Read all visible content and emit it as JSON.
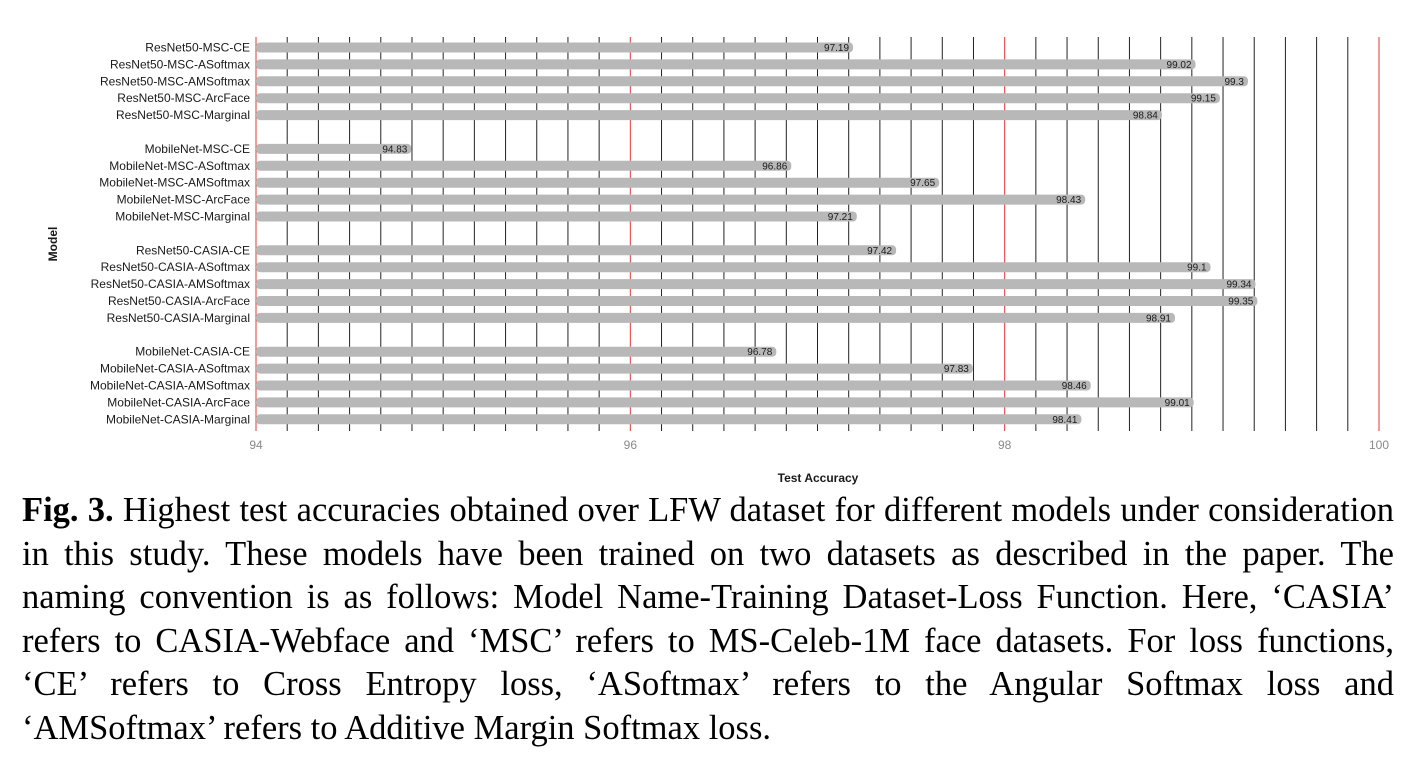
{
  "chart_data": {
    "type": "bar",
    "orientation": "horizontal",
    "xlabel": "Test Accuracy",
    "ylabel": "Model",
    "xlim": [
      94,
      100
    ],
    "xticks": [
      "94",
      "96",
      "98",
      "100"
    ],
    "bar_color": "#b8b8b8",
    "major_grid_color": "#e53935",
    "minor_grid_color": "#222222",
    "groups": [
      {
        "categories": [
          "ResNet50-MSC-CE",
          "ResNet50-MSC-ASoftmax",
          "ResNet50-MSC-AMSoftmax",
          "ResNet50-MSC-ArcFace",
          "ResNet50-MSC-Marginal"
        ],
        "values": [
          97.19,
          99.02,
          99.3,
          99.15,
          98.84
        ],
        "labels": [
          "97.19",
          "99.02",
          "99.3",
          "99.15",
          "98.84"
        ]
      },
      {
        "categories": [
          "MobileNet-MSC-CE",
          "MobileNet-MSC-ASoftmax",
          "MobileNet-MSC-AMSoftmax",
          "MobileNet-MSC-ArcFace",
          "MobileNet-MSC-Marginal"
        ],
        "values": [
          94.83,
          96.86,
          97.65,
          98.43,
          97.21
        ],
        "labels": [
          "94.83",
          "96.86",
          "97.65",
          "98.43",
          "97.21"
        ]
      },
      {
        "categories": [
          "ResNet50-CASIA-CE",
          "ResNet50-CASIA-ASoftmax",
          "ResNet50-CASIA-AMSoftmax",
          "ResNet50-CASIA-ArcFace",
          "ResNet50-CASIA-Marginal"
        ],
        "values": [
          97.42,
          99.1,
          99.34,
          99.35,
          98.91
        ],
        "labels": [
          "97.42",
          "99.1",
          "99.34",
          "99.35",
          "98.91"
        ]
      },
      {
        "categories": [
          "MobileNet-CASIA-CE",
          "MobileNet-CASIA-ASoftmax",
          "MobileNet-CASIA-AMSoftmax",
          "MobileNet-CASIA-ArcFace",
          "MobileNet-CASIA-Marginal"
        ],
        "values": [
          96.78,
          97.83,
          98.46,
          99.01,
          98.41
        ],
        "labels": [
          "96.78",
          "97.83",
          "98.46",
          "99.01",
          "98.41"
        ]
      }
    ]
  },
  "caption": {
    "label": "Fig. 3.",
    "text": "Highest test accuracies obtained over LFW dataset for different models under consideration in this study. These models have been trained on two datasets as described in the paper. The naming convention is as follows: Model Name-Training Dataset-Loss Function. Here, ‘CASIA’ refers to CASIA-Webface and ‘MSC’ refers to MS-Celeb-1M face datasets. For loss functions, ‘CE’ refers to Cross Entropy loss, ‘ASoftmax’ refers to the Angular Softmax loss and ‘AMSoftmax’ refers to Additive Margin Softmax loss."
  }
}
